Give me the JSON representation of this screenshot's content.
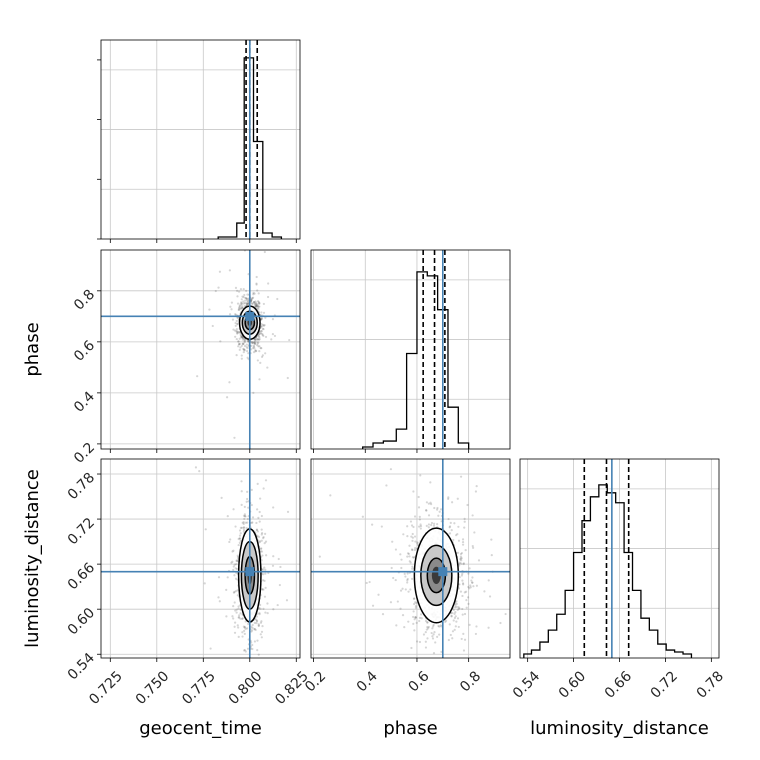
{
  "chart_data": {
    "type": "corner",
    "parameters": [
      "geocent_time",
      "phase",
      "luminosity_distance"
    ],
    "truths": {
      "geocent_time": 0.8,
      "phase": 0.7,
      "luminosity_distance": 0.65
    },
    "colors": {
      "truth": "#4682b4",
      "hist": "#000000",
      "grid": "#c8c8c8",
      "points": "#5a5a5a"
    },
    "grid": true,
    "panels": [
      {
        "id": "hist-geocent_time",
        "type": "histogram",
        "row": 0,
        "col": 0,
        "xlim": [
          0.72,
          0.827
        ],
        "ylim": [
          0,
          1.0
        ],
        "bins": [
          {
            "x0": 0.783,
            "x1": 0.788,
            "h": 0.01
          },
          {
            "x0": 0.788,
            "x1": 0.793,
            "h": 0.01
          },
          {
            "x0": 0.793,
            "x1": 0.797,
            "h": 0.08
          },
          {
            "x0": 0.797,
            "x1": 0.802,
            "h": 0.91
          },
          {
            "x0": 0.802,
            "x1": 0.807,
            "h": 0.49
          },
          {
            "x0": 0.807,
            "x1": 0.812,
            "h": 0.03
          },
          {
            "x0": 0.812,
            "x1": 0.817,
            "h": 0.01
          }
        ],
        "quantiles": [
          0.798,
          0.8,
          0.804
        ]
      },
      {
        "id": "hist-phase",
        "type": "histogram",
        "row": 1,
        "col": 1,
        "xlim": [
          0.19,
          0.96
        ],
        "ylim": [
          0,
          1.0
        ],
        "bins": [
          {
            "x0": 0.39,
            "x1": 0.43,
            "h": 0.01
          },
          {
            "x0": 0.43,
            "x1": 0.47,
            "h": 0.03
          },
          {
            "x0": 0.47,
            "x1": 0.52,
            "h": 0.04
          },
          {
            "x0": 0.52,
            "x1": 0.56,
            "h": 0.1
          },
          {
            "x0": 0.56,
            "x1": 0.6,
            "h": 0.48
          },
          {
            "x0": 0.6,
            "x1": 0.64,
            "h": 0.89
          },
          {
            "x0": 0.64,
            "x1": 0.68,
            "h": 0.87
          },
          {
            "x0": 0.68,
            "x1": 0.72,
            "h": 0.7
          },
          {
            "x0": 0.72,
            "x1": 0.76,
            "h": 0.21
          },
          {
            "x0": 0.76,
            "x1": 0.8,
            "h": 0.03
          }
        ],
        "quantiles": [
          0.624,
          0.668,
          0.708
        ]
      },
      {
        "id": "hist-luminosity_distance",
        "type": "histogram",
        "row": 2,
        "col": 2,
        "xlim": [
          0.53,
          0.79
        ],
        "ylim": [
          0,
          1.0
        ],
        "bins": [
          {
            "x0": 0.535,
            "x1": 0.545,
            "h": 0.02
          },
          {
            "x0": 0.545,
            "x1": 0.556,
            "h": 0.04
          },
          {
            "x0": 0.556,
            "x1": 0.567,
            "h": 0.08
          },
          {
            "x0": 0.567,
            "x1": 0.578,
            "h": 0.14
          },
          {
            "x0": 0.578,
            "x1": 0.589,
            "h": 0.22
          },
          {
            "x0": 0.589,
            "x1": 0.6,
            "h": 0.34
          },
          {
            "x0": 0.6,
            "x1": 0.611,
            "h": 0.53
          },
          {
            "x0": 0.611,
            "x1": 0.622,
            "h": 0.69
          },
          {
            "x0": 0.622,
            "x1": 0.633,
            "h": 0.81
          },
          {
            "x0": 0.633,
            "x1": 0.644,
            "h": 0.87
          },
          {
            "x0": 0.644,
            "x1": 0.655,
            "h": 0.83
          },
          {
            "x0": 0.655,
            "x1": 0.666,
            "h": 0.78
          },
          {
            "x0": 0.666,
            "x1": 0.677,
            "h": 0.53
          },
          {
            "x0": 0.677,
            "x1": 0.688,
            "h": 0.34
          },
          {
            "x0": 0.688,
            "x1": 0.699,
            "h": 0.2
          },
          {
            "x0": 0.699,
            "x1": 0.71,
            "h": 0.14
          },
          {
            "x0": 0.71,
            "x1": 0.721,
            "h": 0.07
          },
          {
            "x0": 0.721,
            "x1": 0.732,
            "h": 0.04
          },
          {
            "x0": 0.732,
            "x1": 0.743,
            "h": 0.03
          },
          {
            "x0": 0.743,
            "x1": 0.754,
            "h": 0.02
          }
        ],
        "quantiles": [
          0.614,
          0.643,
          0.672
        ]
      },
      {
        "id": "scatter-phase-vs-geocent_time",
        "type": "density",
        "row": 1,
        "col": 0,
        "xparam": "geocent_time",
        "yparam": "phase",
        "xlim": [
          0.72,
          0.827
        ],
        "ylim": [
          0.18,
          0.96
        ],
        "center": [
          0.8,
          0.675
        ],
        "spread": [
          0.0025,
          0.04
        ],
        "contours": [
          [
            0.0025,
            0.027
          ],
          [
            0.004,
            0.045
          ],
          [
            0.0055,
            0.065
          ]
        ]
      },
      {
        "id": "scatter-luminosity_distance-vs-geocent_time",
        "type": "density",
        "row": 2,
        "col": 0,
        "xparam": "geocent_time",
        "yparam": "luminosity_distance",
        "xlim": [
          0.72,
          0.827
        ],
        "ylim": [
          0.535,
          0.8
        ],
        "center": [
          0.8,
          0.645
        ],
        "spread": [
          0.0028,
          0.03
        ],
        "contours": [
          [
            0.0025,
            0.025
          ],
          [
            0.0045,
            0.045
          ],
          [
            0.006,
            0.062
          ]
        ]
      },
      {
        "id": "scatter-luminosity_distance-vs-phase",
        "type": "density",
        "row": 2,
        "col": 1,
        "xparam": "phase",
        "yparam": "luminosity_distance",
        "xlim": [
          0.19,
          0.96
        ],
        "ylim": [
          0.535,
          0.8
        ],
        "center": [
          0.675,
          0.645
        ],
        "spread": [
          0.045,
          0.03
        ],
        "contours": [
          [
            0.035,
            0.023
          ],
          [
            0.06,
            0.04
          ],
          [
            0.085,
            0.063
          ]
        ]
      }
    ],
    "x_ticks": [
      {
        "col": 0,
        "values": [
          0.725,
          0.75,
          0.775,
          0.8,
          0.825
        ],
        "labels": [
          "0.725",
          "0.750",
          "0.775",
          "0.800",
          "0.825"
        ]
      },
      {
        "col": 1,
        "values": [
          0.2,
          0.4,
          0.6,
          0.8
        ],
        "labels": [
          "0.2",
          "0.4",
          "0.6",
          "0.8"
        ]
      },
      {
        "col": 2,
        "values": [
          0.54,
          0.6,
          0.66,
          0.72,
          0.78
        ],
        "labels": [
          "0.54",
          "0.60",
          "0.66",
          "0.72",
          "0.78"
        ]
      }
    ],
    "y_ticks": [
      {
        "row": 1,
        "values": [
          0.2,
          0.4,
          0.6,
          0.8
        ],
        "labels": [
          "0.2",
          "0.4",
          "0.6",
          "0.8"
        ]
      },
      {
        "row": 2,
        "values": [
          0.54,
          0.6,
          0.66,
          0.72,
          0.78
        ],
        "labels": [
          "0.54",
          "0.60",
          "0.66",
          "0.72",
          "0.78"
        ]
      }
    ],
    "xlabels": [
      "geocent_time",
      "phase",
      "luminosity_distance"
    ],
    "ylabels": [
      {
        "row": 1,
        "text": "phase"
      },
      {
        "row": 2,
        "text": "luminosity_distance"
      }
    ]
  }
}
